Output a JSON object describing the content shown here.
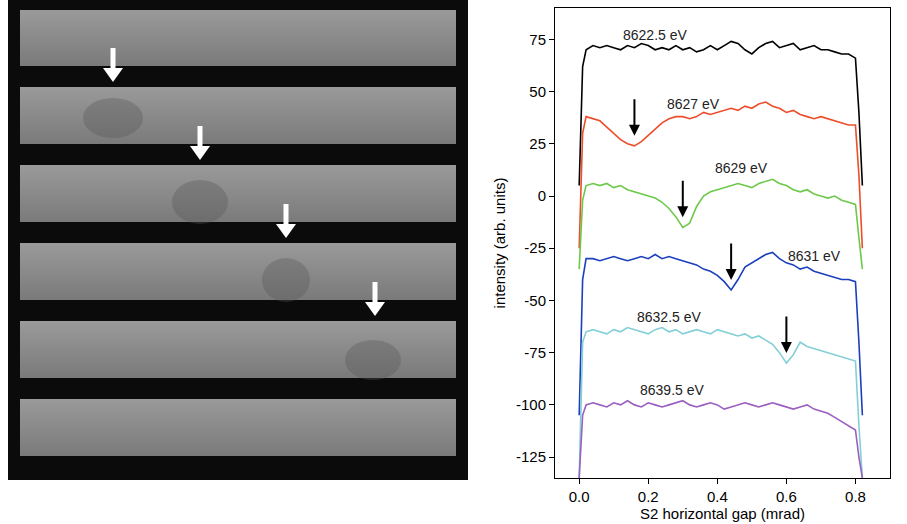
{
  "chart_data": {
    "type": "line",
    "xaxis_label": "S2 horizontal gap (mrad)",
    "yaxis_label": "intensity (arb. units)",
    "x": [
      0,
      0.01,
      0.02,
      0.04,
      0.06,
      0.08,
      0.1,
      0.12,
      0.14,
      0.16,
      0.18,
      0.2,
      0.22,
      0.24,
      0.26,
      0.28,
      0.3,
      0.32,
      0.34,
      0.36,
      0.38,
      0.4,
      0.42,
      0.44,
      0.46,
      0.48,
      0.5,
      0.52,
      0.54,
      0.56,
      0.58,
      0.6,
      0.62,
      0.64,
      0.66,
      0.68,
      0.7,
      0.72,
      0.74,
      0.76,
      0.78,
      0.8,
      0.81,
      0.82
    ],
    "series": [
      {
        "name": "8622.5 eV",
        "color": "#000000",
        "values": [
          5,
          62,
          70,
          72,
          71,
          72,
          71,
          70,
          72,
          71,
          73,
          72,
          70,
          71,
          70,
          72,
          70,
          71,
          69,
          70,
          72,
          70,
          72,
          74,
          73,
          70,
          68,
          71,
          73,
          74,
          71,
          72,
          73,
          70,
          71,
          72,
          70,
          70,
          69,
          68,
          68,
          66,
          40,
          5
        ]
      },
      {
        "name": "8627 eV",
        "color": "#ee4d2a",
        "values": [
          -25,
          30,
          38,
          37,
          36,
          33,
          30,
          27,
          25,
          24,
          26,
          29,
          32,
          35,
          37,
          38,
          38,
          37,
          38,
          40,
          39,
          40,
          41,
          42,
          41,
          43,
          42,
          44,
          45,
          43,
          42,
          40,
          41,
          39,
          38,
          37,
          38,
          37,
          36,
          35,
          34,
          34,
          10,
          -25
        ]
      },
      {
        "name": "8629 eV",
        "color": "#6cc94a",
        "values": [
          -35,
          -2,
          5,
          6,
          5,
          6,
          4,
          5,
          3,
          2,
          1,
          0,
          -1,
          -3,
          -6,
          -10,
          -15,
          -13,
          -5,
          0,
          2,
          3,
          4,
          5,
          6,
          5,
          4,
          6,
          7,
          8,
          6,
          5,
          3,
          2,
          3,
          1,
          0,
          -1,
          0,
          -2,
          -3,
          -4,
          -20,
          -35
        ]
      },
      {
        "name": "8631 eV",
        "color": "#1c3fbd",
        "values": [
          -105,
          -40,
          -30,
          -30,
          -31,
          -30,
          -29,
          -30,
          -31,
          -30,
          -29,
          -30,
          -28,
          -30,
          -29,
          -30,
          -31,
          -32,
          -33,
          -35,
          -36,
          -38,
          -41,
          -45,
          -40,
          -34,
          -32,
          -30,
          -28,
          -27,
          -30,
          -32,
          -33,
          -35,
          -34,
          -36,
          -37,
          -38,
          -39,
          -40,
          -40,
          -41,
          -70,
          -105
        ]
      },
      {
        "name": "8632.5 eV",
        "color": "#82cfd6",
        "values": [
          -135,
          -70,
          -65,
          -64,
          -65,
          -66,
          -64,
          -65,
          -63,
          -64,
          -65,
          -66,
          -64,
          -63,
          -65,
          -64,
          -66,
          -65,
          -64,
          -65,
          -66,
          -64,
          -65,
          -66,
          -67,
          -66,
          -68,
          -67,
          -69,
          -71,
          -75,
          -80,
          -76,
          -70,
          -72,
          -73,
          -74,
          -75,
          -76,
          -77,
          -78,
          -79,
          -110,
          -135
        ]
      },
      {
        "name": "8639.5 eV",
        "color": "#9a5fc0",
        "values": [
          -135,
          -105,
          -100,
          -99,
          -100,
          -101,
          -99,
          -100,
          -98,
          -100,
          -101,
          -99,
          -100,
          -101,
          -100,
          -99,
          -98,
          -100,
          -101,
          -100,
          -99,
          -100,
          -102,
          -101,
          -100,
          -99,
          -100,
          -101,
          -100,
          -99,
          -100,
          -101,
          -102,
          -101,
          -100,
          -102,
          -103,
          -104,
          -106,
          -108,
          -110,
          -112,
          -125,
          -135
        ]
      }
    ],
    "xlim": [
      -0.07,
      0.9
    ],
    "xticks": [
      {
        "value": 0,
        "label": "0.0"
      },
      0.2,
      0.4,
      0.6,
      0.8
    ],
    "ylim": [
      -135,
      90
    ],
    "yticks": [
      -125,
      -100,
      -75,
      -50,
      -25,
      0,
      25,
      50,
      75
    ],
    "grid": false
  }
}
